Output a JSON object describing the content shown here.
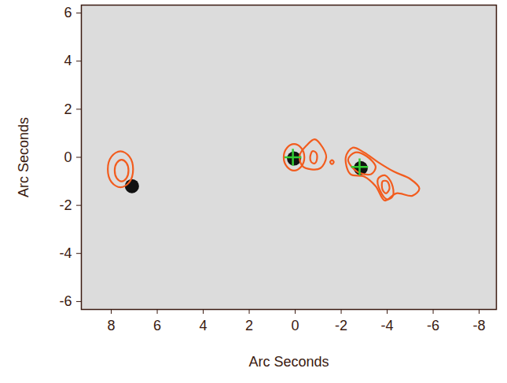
{
  "chart_data": {
    "type": "contour",
    "x_label": "Arc Seconds",
    "y_label": "Arc Seconds",
    "xlim": [
      9.3,
      -8.75
    ],
    "ylim": [
      -6.33,
      6.33
    ],
    "xticks": [
      8,
      6,
      4,
      2,
      0,
      -2,
      -4,
      -6,
      -8
    ],
    "yticks": [
      -6,
      -4,
      -2,
      0,
      2,
      4,
      6
    ],
    "contours": {
      "color": "#f25c1e",
      "lines": [
        {
          "x": [
            8.15,
            7.99,
            7.6,
            7.21,
            7.05,
            7.21,
            7.6,
            7.99
          ],
          "y": [
            -0.5,
            0.03,
            0.25,
            0.03,
            -0.5,
            -1.03,
            -1.25,
            -1.03
          ]
        },
        {
          "x": [
            7.85,
            7.76,
            7.55,
            7.34,
            7.25,
            7.34,
            7.55,
            7.76
          ],
          "y": [
            -0.55,
            -0.23,
            -0.1,
            -0.23,
            -0.55,
            -0.87,
            -1.0,
            -0.87
          ]
        },
        {
          "x": [
            0.5,
            0.35,
            0.05,
            -0.25,
            -0.4,
            -0.25,
            0.05,
            0.35
          ],
          "y": [
            0,
            0.4,
            0.55,
            0.4,
            0,
            -0.4,
            -0.55,
            -0.4
          ]
        },
        {
          "x": [
            -0.2,
            -0.5,
            -0.85,
            -1.2,
            -1.35,
            -1.1,
            -0.7,
            -0.3
          ],
          "y": [
            0.1,
            0.5,
            0.75,
            0.4,
            0,
            -0.45,
            -0.5,
            -0.35
          ]
        },
        {
          "x": [
            -0.65,
            -0.75,
            -0.9,
            -0.95,
            -0.85,
            -0.7
          ],
          "y": [
            0,
            0.25,
            0.2,
            -0.05,
            -0.25,
            -0.2
          ]
        },
        {
          "x": [
            -1.52,
            -1.6,
            -1.68,
            -1.6
          ],
          "y": [
            -0.2,
            -0.12,
            -0.2,
            -0.28
          ]
        },
        {
          "x": [
            -2.2,
            -2.5,
            -3.0,
            -3.6,
            -4.3,
            -5.0,
            -5.4,
            -5.1,
            -4.4,
            -3.9,
            -3.5,
            -3.0,
            -2.4
          ],
          "y": [
            0,
            0.4,
            0.2,
            -0.2,
            -0.6,
            -0.9,
            -1.3,
            -1.6,
            -1.5,
            -1.8,
            -1.2,
            -0.8,
            -0.7
          ]
        },
        {
          "x": [
            -2.3,
            -2.6,
            -3.1,
            -3.5,
            -3.3,
            -2.7
          ],
          "y": [
            -0.1,
            0.2,
            0.05,
            -0.4,
            -0.7,
            -0.6
          ]
        },
        {
          "x": [
            -3.6,
            -3.9,
            -4.2,
            -4.25,
            -4.0,
            -3.7
          ],
          "y": [
            -0.9,
            -0.75,
            -1.1,
            -1.6,
            -1.75,
            -1.4
          ]
        },
        {
          "x": [
            -3.8,
            -4.0,
            -4.1,
            -3.95,
            -3.8
          ],
          "y": [
            -1.0,
            -1.0,
            -1.3,
            -1.5,
            -1.35
          ]
        }
      ]
    },
    "positions": {
      "color": "#33cc33",
      "marker": "plus",
      "x": [
        0.1,
        -2.8
      ],
      "y": [
        0.0,
        -0.4
      ]
    },
    "dark_sources": {
      "color": "#111111",
      "x": [
        0.05,
        -2.85,
        7.1
      ],
      "y": [
        -0.05,
        -0.45,
        -1.2
      ]
    }
  }
}
